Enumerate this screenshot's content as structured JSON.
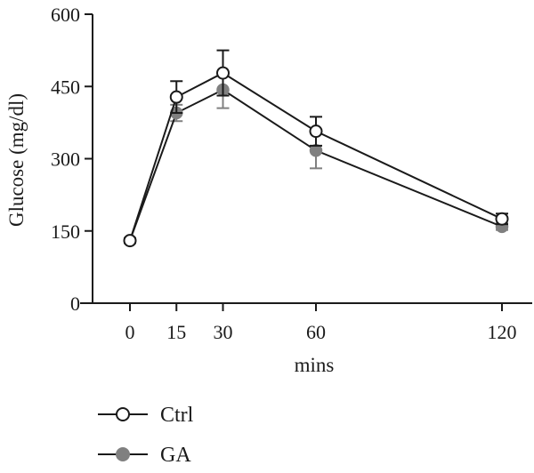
{
  "chart_data": {
    "type": "line",
    "x": [
      0,
      15,
      30,
      60,
      120
    ],
    "xlabel": "mins",
    "ylabel": "Glucose (mg/dl)",
    "xticks": [
      0,
      15,
      30,
      60,
      120
    ],
    "yticks": [
      0,
      150,
      300,
      450,
      600
    ],
    "ylim": [
      0,
      600
    ],
    "grid": false,
    "legend_position": "bottom-left",
    "series": [
      {
        "name": "Ctrl",
        "marker": "open-circle",
        "color": "#1a1a1a",
        "values": [
          130,
          428,
          478,
          357,
          175
        ],
        "error": [
          5,
          33,
          47,
          30,
          11
        ]
      },
      {
        "name": "GA",
        "marker": "filled-circle",
        "color": "#808080",
        "values": [
          130,
          395,
          443,
          317,
          159
        ],
        "error": [
          5,
          17,
          38,
          37,
          7
        ]
      }
    ]
  }
}
